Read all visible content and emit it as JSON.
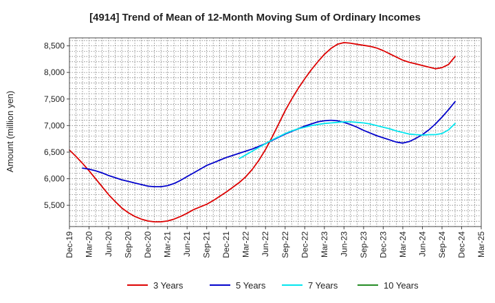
{
  "chart_data": {
    "type": "line",
    "title": "[4914]  Trend of Mean of 12-Month Moving Sum of Ordinary Incomes",
    "xlabel": "",
    "ylabel": "Amount (million yen)",
    "ylim": [
      5100,
      8650
    ],
    "yticks": [
      5500,
      6000,
      6500,
      7000,
      7500,
      8000,
      8500
    ],
    "ytick_labels": [
      "5,500",
      "6,000",
      "6,500",
      "7,000",
      "7,500",
      "8,000",
      "8,500"
    ],
    "x_tick_labels": [
      "Dec-19",
      "Mar-20",
      "Jun-20",
      "Sep-20",
      "Dec-20",
      "Mar-21",
      "Jun-21",
      "Sep-21",
      "Dec-21",
      "Mar-22",
      "Jun-22",
      "Sep-22",
      "Dec-22",
      "Mar-23",
      "Jun-23",
      "Sep-23",
      "Dec-23",
      "Mar-24",
      "Jun-24",
      "Sep-24",
      "Dec-24",
      "Mar-25"
    ],
    "x_unit": "month index (0 = Dec-19, 63 = Mar-25)",
    "xlim": [
      0,
      63
    ],
    "grid": true,
    "legend_position": "bottom",
    "series": [
      {
        "name": "3 Years",
        "color": "#dd0000",
        "x": [
          0,
          1,
          2,
          3,
          4,
          5,
          6,
          7,
          8,
          9,
          10,
          11,
          12,
          13,
          14,
          15,
          16,
          17,
          18,
          19,
          20,
          21,
          22,
          23,
          24,
          25,
          26,
          27,
          28,
          29,
          30,
          31,
          32,
          33,
          34,
          35,
          36,
          37,
          38,
          39,
          40,
          41,
          42,
          43,
          44,
          45,
          46,
          47,
          48,
          49,
          50,
          51,
          52,
          53,
          54,
          55,
          56,
          57,
          58,
          59,
          60
        ],
        "values": [
          6540,
          6420,
          6290,
          6150,
          6000,
          5850,
          5700,
          5570,
          5450,
          5360,
          5290,
          5240,
          5205,
          5190,
          5190,
          5205,
          5240,
          5290,
          5350,
          5420,
          5470,
          5520,
          5590,
          5670,
          5750,
          5840,
          5930,
          6040,
          6180,
          6350,
          6550,
          6780,
          7030,
          7280,
          7500,
          7700,
          7880,
          8050,
          8200,
          8340,
          8450,
          8530,
          8560,
          8550,
          8530,
          8510,
          8490,
          8460,
          8410,
          8350,
          8290,
          8230,
          8190,
          8160,
          8130,
          8100,
          8070,
          8090,
          8150,
          8300,
          8300
        ],
        "plot_to": 59
      },
      {
        "name": "5 Years",
        "color": "#0000cc",
        "x": [
          2,
          3,
          4,
          5,
          6,
          7,
          8,
          9,
          10,
          11,
          12,
          13,
          14,
          15,
          16,
          17,
          18,
          19,
          20,
          21,
          22,
          23,
          24,
          25,
          26,
          27,
          28,
          29,
          30,
          31,
          32,
          33,
          34,
          35,
          36,
          37,
          38,
          39,
          40,
          41,
          42,
          43,
          44,
          45,
          46,
          47,
          48,
          49,
          50,
          51,
          52,
          53,
          54,
          55,
          56,
          57,
          58,
          59
        ],
        "values": [
          6200,
          6180,
          6150,
          6110,
          6060,
          6020,
          5980,
          5950,
          5920,
          5890,
          5860,
          5850,
          5850,
          5870,
          5910,
          5970,
          6040,
          6110,
          6180,
          6250,
          6300,
          6350,
          6400,
          6440,
          6480,
          6520,
          6560,
          6610,
          6660,
          6720,
          6780,
          6840,
          6890,
          6940,
          6990,
          7030,
          7070,
          7090,
          7100,
          7090,
          7060,
          7020,
          6970,
          6910,
          6860,
          6810,
          6770,
          6730,
          6690,
          6670,
          6700,
          6760,
          6830,
          6920,
          7030,
          7160,
          7300,
          7450
        ]
      },
      {
        "name": "7 Years",
        "color": "#00e5ee",
        "x": [
          26,
          27,
          28,
          29,
          30,
          31,
          32,
          33,
          34,
          35,
          36,
          37,
          38,
          39,
          40,
          41,
          42,
          43,
          44,
          45,
          46,
          47,
          48,
          49,
          50,
          51,
          52,
          53,
          54,
          55,
          56,
          57,
          58,
          59
        ],
        "values": [
          6380,
          6450,
          6520,
          6590,
          6660,
          6730,
          6790,
          6850,
          6900,
          6940,
          6970,
          7000,
          7020,
          7040,
          7050,
          7060,
          7070,
          7070,
          7060,
          7050,
          7030,
          7000,
          6970,
          6940,
          6900,
          6870,
          6840,
          6830,
          6820,
          6830,
          6830,
          6850,
          6920,
          7040
        ]
      },
      {
        "name": "10 Years",
        "color": "#228b22",
        "x": [],
        "values": []
      }
    ]
  }
}
